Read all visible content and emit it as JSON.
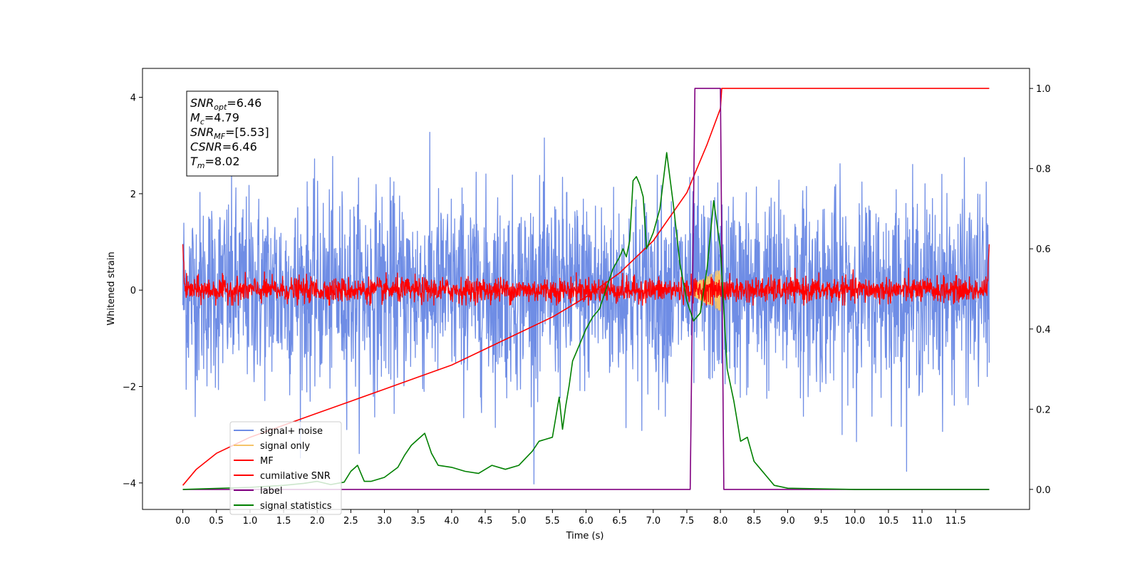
{
  "chart_data": {
    "type": "line",
    "xlabel": "Time (s)",
    "ylabel": "Whitened strain",
    "xlim": [
      -0.6,
      12.6
    ],
    "ylim": [
      -4.55,
      4.6
    ],
    "ylim_right": [
      -0.05,
      1.05
    ],
    "xticks": [
      "0.0",
      "0.5",
      "1.0",
      "1.5",
      "2.0",
      "2.5",
      "3.0",
      "3.5",
      "4.0",
      "4.5",
      "5.0",
      "5.5",
      "6.0",
      "6.5",
      "7.0",
      "7.5",
      "8.0",
      "8.5",
      "9.0",
      "9.5",
      "10.0",
      "10.5",
      "11.0",
      "11.5"
    ],
    "yticks_left": [
      "4",
      "2",
      "0",
      "−2",
      "−4"
    ],
    "yticks_right": [
      "1.0",
      "0.8",
      "0.6",
      "0.4",
      "0.2",
      "0.0"
    ],
    "annotation": {
      "lines": [
        {
          "main": "SNR",
          "sub": "opt",
          "rest": "=6.46"
        },
        {
          "main": "M",
          "sub": "c",
          "rest": "=4.79"
        },
        {
          "main": "SNR",
          "sub": "MF",
          "rest": "=[5.53]"
        },
        {
          "main": "CSNR",
          "sub": "",
          "rest": "=6.46"
        },
        {
          "main": "T",
          "sub": "m",
          "rest": "=8.02"
        }
      ]
    },
    "legend": {
      "position": "lower-left",
      "entries": [
        {
          "label": "signal+ noise",
          "color": "#6f8de5"
        },
        {
          "label": "signal only",
          "color": "#f5c46a"
        },
        {
          "label": "MF",
          "color": "#ff0000"
        },
        {
          "label": "cumilative SNR",
          "color": "#ff0000"
        },
        {
          "label": "label",
          "color": "#800080"
        },
        {
          "label": "signal statistics",
          "color": "#008000"
        }
      ]
    },
    "series": [
      {
        "name": "signal+ noise",
        "axis": "left",
        "color": "#6f8de5",
        "time_range": [
          0,
          12
        ],
        "amplitude_typical": 1.0,
        "amplitude_peak": 4.1
      },
      {
        "name": "signal only",
        "axis": "left",
        "color": "#f5c46a",
        "time_range": [
          7.6,
          8.0
        ],
        "amplitude_peak": 0.45
      },
      {
        "name": "MF",
        "axis": "left",
        "color": "#ff0000",
        "time_range": [
          0,
          12
        ],
        "amplitude_typical": 0.25,
        "amplitude_peak": 0.95
      },
      {
        "name": "cumilative SNR",
        "axis": "right",
        "color": "#ff0000",
        "x": [
          0.0,
          0.2,
          0.5,
          1.0,
          1.5,
          2.0,
          2.5,
          3.0,
          3.5,
          4.0,
          4.5,
          5.0,
          5.5,
          6.0,
          6.5,
          7.0,
          7.5,
          7.8,
          8.0,
          8.02,
          12.0
        ],
        "y": [
          0.01,
          0.05,
          0.09,
          0.13,
          0.16,
          0.19,
          0.22,
          0.25,
          0.28,
          0.31,
          0.35,
          0.39,
          0.43,
          0.48,
          0.54,
          0.62,
          0.74,
          0.86,
          0.95,
          1.0,
          1.0
        ]
      },
      {
        "name": "label",
        "axis": "right",
        "color": "#800080",
        "x": [
          0.0,
          7.55,
          7.62,
          8.0,
          8.05,
          12.0
        ],
        "y": [
          0.0,
          0.0,
          1.0,
          1.0,
          0.0,
          0.0
        ]
      },
      {
        "name": "signal statistics",
        "axis": "right",
        "color": "#008000",
        "x": [
          0.0,
          1.0,
          1.5,
          1.8,
          2.0,
          2.2,
          2.4,
          2.5,
          2.6,
          2.7,
          2.8,
          3.0,
          3.2,
          3.3,
          3.4,
          3.5,
          3.6,
          3.7,
          3.8,
          4.0,
          4.2,
          4.4,
          4.6,
          4.8,
          5.0,
          5.2,
          5.3,
          5.4,
          5.5,
          5.55,
          5.6,
          5.65,
          5.7,
          5.75,
          5.8,
          5.85,
          5.9,
          5.95,
          6.0,
          6.1,
          6.2,
          6.3,
          6.4,
          6.5,
          6.55,
          6.6,
          6.65,
          6.7,
          6.75,
          6.8,
          6.85,
          6.9,
          7.0,
          7.1,
          7.2,
          7.3,
          7.4,
          7.5,
          7.6,
          7.7,
          7.8,
          7.9,
          8.0,
          8.1,
          8.2,
          8.3,
          8.4,
          8.5,
          8.6,
          8.7,
          8.8,
          9.0,
          10.0,
          12.0
        ],
        "y": [
          0.0,
          0.005,
          0.01,
          0.015,
          0.02,
          0.012,
          0.018,
          0.045,
          0.06,
          0.02,
          0.02,
          0.03,
          0.055,
          0.085,
          0.11,
          0.125,
          0.14,
          0.09,
          0.06,
          0.055,
          0.045,
          0.04,
          0.06,
          0.05,
          0.06,
          0.095,
          0.12,
          0.125,
          0.13,
          0.18,
          0.23,
          0.15,
          0.21,
          0.26,
          0.32,
          0.34,
          0.36,
          0.38,
          0.4,
          0.43,
          0.45,
          0.5,
          0.55,
          0.58,
          0.6,
          0.58,
          0.62,
          0.77,
          0.78,
          0.76,
          0.73,
          0.6,
          0.64,
          0.7,
          0.84,
          0.71,
          0.56,
          0.47,
          0.42,
          0.44,
          0.55,
          0.72,
          0.6,
          0.3,
          0.22,
          0.12,
          0.13,
          0.07,
          0.05,
          0.03,
          0.01,
          0.003,
          0.0,
          0.0
        ]
      }
    ]
  }
}
